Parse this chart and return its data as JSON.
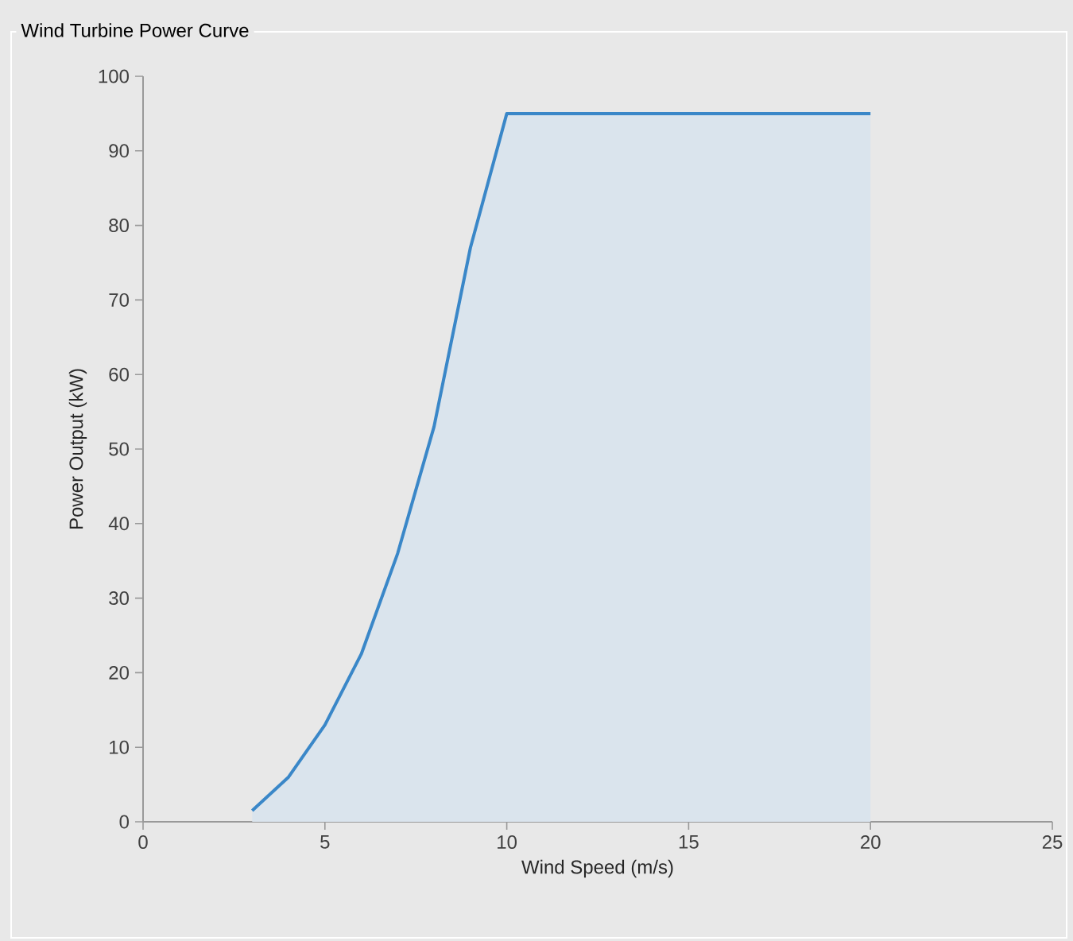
{
  "chart_data": {
    "type": "area",
    "title": "Wind Turbine Power Curve",
    "xlabel": "Wind Speed (m/s)",
    "ylabel": "Power Output (kW)",
    "x": [
      3,
      4,
      5,
      6,
      7,
      8,
      9,
      10,
      20
    ],
    "series": [
      {
        "color": "#3a87c8",
        "values": [
          1.5,
          6,
          13,
          22.5,
          36,
          53,
          77,
          95,
          95
        ]
      }
    ],
    "xlim": [
      0,
      25
    ],
    "xticks": [
      0,
      5,
      10,
      15,
      20,
      25
    ],
    "ylim": [
      0,
      100
    ],
    "yticks": [
      0,
      10,
      20,
      30,
      40,
      50,
      60,
      70,
      80,
      90,
      100
    ],
    "grid": false
  }
}
